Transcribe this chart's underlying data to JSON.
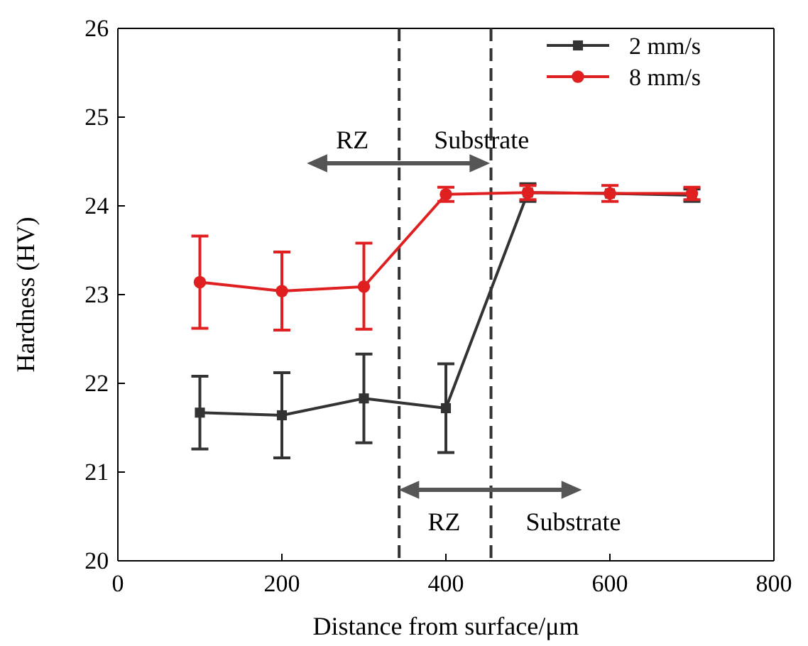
{
  "chart_data": {
    "type": "line",
    "xlabel": "Distance from surface/μm",
    "ylabel": "Hardness (HV)",
    "xlim": [
      0,
      800
    ],
    "xticks": [
      0,
      200,
      400,
      600,
      800
    ],
    "ylim": [
      20,
      26
    ],
    "yticks": [
      20,
      21,
      22,
      23,
      24,
      25,
      26
    ],
    "legend": "top right",
    "line_style": "solid",
    "series": [
      {
        "name": "2 mm/s",
        "color": "#333333",
        "marker": "square",
        "x": [
          100,
          200,
          300,
          400,
          500,
          600,
          700
        ],
        "values": [
          21.67,
          21.64,
          21.83,
          21.72,
          24.15,
          24.14,
          24.12
        ],
        "errors": [
          0.41,
          0.48,
          0.5,
          0.5,
          0.1,
          null,
          0.07
        ]
      },
      {
        "name": "8 mm/s",
        "color": "#e02020",
        "marker": "circle",
        "x": [
          100,
          200,
          300,
          400,
          500,
          600,
          700
        ],
        "values": [
          23.14,
          23.04,
          23.09,
          24.13,
          24.15,
          24.14,
          24.14
        ],
        "errors": [
          0.52,
          0.44,
          [
            22.61,
            23.58
          ],
          0.08,
          0.08,
          0.09,
          0.07
        ]
      }
    ],
    "ref_lines": [
      {
        "axis": "x",
        "value": 343,
        "line_style": "dashed",
        "color": "#333333"
      },
      {
        "axis": "x",
        "value": 455,
        "line_style": "dashed",
        "color": "#333333"
      }
    ],
    "annotations": [
      "RZ",
      "Substrate",
      "RZ",
      "Substrate"
    ]
  }
}
